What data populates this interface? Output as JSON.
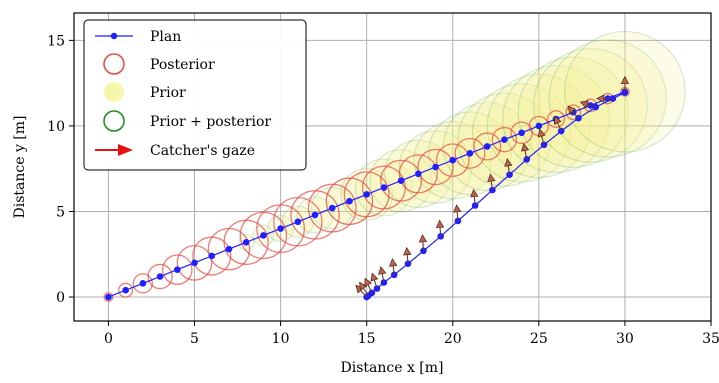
{
  "chart_data": {
    "type": "scatter",
    "xlabel": "Distance x [m]",
    "ylabel": "Distance y [m]",
    "xlim": [
      -2,
      35
    ],
    "ylim": [
      -1.4,
      16.6
    ],
    "x_ticks": [
      0,
      5,
      10,
      15,
      20,
      25,
      30,
      35
    ],
    "y_ticks": [
      0,
      5,
      10,
      15
    ],
    "grid": true,
    "legend_position": "top-left",
    "legend": [
      "Plan",
      "Posterior",
      "Prior",
      "Prior + posterior",
      "Catcher's gaze"
    ],
    "colors": {
      "plan": "#1f1fff",
      "posterior": "#e8463c",
      "prior": "#f4f28a",
      "prior_posterior": "#1e8a1e",
      "gaze_fill": "#c0634a"
    },
    "ball_plan": {
      "x": [
        0,
        1,
        2,
        3,
        4,
        5,
        6,
        7,
        8,
        9,
        10,
        11,
        12,
        13,
        14,
        15,
        16,
        17,
        18,
        19,
        20,
        21,
        22,
        23,
        24,
        25,
        26,
        27,
        28,
        29,
        30
      ],
      "y": [
        0,
        0.4,
        0.8,
        1.2,
        1.6,
        2,
        2.4,
        2.8,
        3.2,
        3.6,
        4,
        4.4,
        4.8,
        5.2,
        5.6,
        6,
        6.4,
        6.8,
        7.2,
        7.6,
        8,
        8.4,
        8.8,
        9.2,
        9.6,
        10,
        10.4,
        10.8,
        11.2,
        11.6,
        12
      ]
    },
    "posterior_radius": [
      0.25,
      0.4,
      0.55,
      0.7,
      0.85,
      1.0,
      1.1,
      1.2,
      1.28,
      1.34,
      1.38,
      1.4,
      1.4,
      1.38,
      1.34,
      1.3,
      1.24,
      1.18,
      1.1,
      1.02,
      0.94,
      0.86,
      0.78,
      0.7,
      0.62,
      0.55,
      0.48,
      0.42,
      0.36,
      0.3,
      0.25
    ],
    "prior_start_index": 8,
    "prior_radius": [
      0.45,
      0.6,
      0.75,
      0.9,
      1.05,
      1.2,
      1.35,
      1.5,
      1.65,
      1.8,
      1.95,
      2.1,
      2.25,
      2.4,
      2.55,
      2.7,
      2.85,
      3.0,
      3.1,
      3.2,
      3.3,
      3.4,
      3.5
    ],
    "catcher_plan": {
      "x": [
        15,
        15.1,
        15.3,
        15.6,
        16,
        16.6,
        17.4,
        18.3,
        19.3,
        20.3,
        21.3,
        22.3,
        23.3,
        24.3,
        25.3,
        26.3,
        27.3,
        28.3,
        29.3,
        30
      ],
      "y": [
        0,
        0.08,
        0.25,
        0.5,
        0.85,
        1.3,
        1.95,
        2.7,
        3.55,
        4.45,
        5.35,
        6.25,
        7.15,
        8.05,
        8.9,
        9.7,
        10.45,
        11.1,
        11.6,
        11.95
      ]
    }
  }
}
